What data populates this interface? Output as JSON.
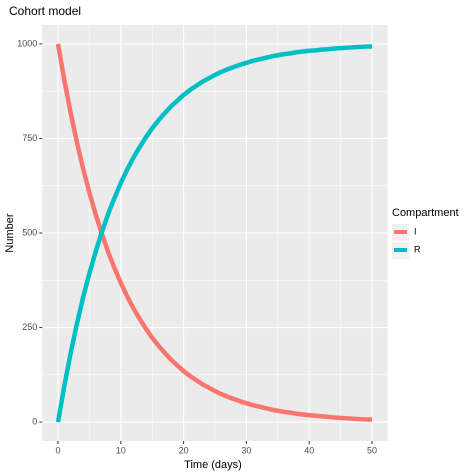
{
  "chart_data": {
    "type": "line",
    "title": "Cohort model",
    "x_label": "Time (days)",
    "y_label": "Number",
    "legend_title": "Compartment",
    "legend_position": "right",
    "grid": true,
    "x": [
      0,
      1,
      2,
      3,
      4,
      5,
      6,
      7,
      8,
      9,
      10,
      11,
      12,
      13,
      14,
      15,
      16,
      17,
      18,
      19,
      20,
      21,
      22,
      23,
      24,
      25,
      26,
      27,
      28,
      29,
      30,
      31,
      32,
      33,
      34,
      35,
      36,
      37,
      38,
      39,
      40,
      41,
      42,
      43,
      44,
      45,
      46,
      47,
      48,
      49,
      50
    ],
    "series": [
      {
        "name": "I",
        "color": "#F8766D",
        "values": [
          1000,
          905,
          819,
          741,
          670,
          607,
          549,
          497,
          449,
          407,
          368,
          333,
          301,
          273,
          247,
          223,
          202,
          183,
          165,
          150,
          135,
          122,
          111,
          100,
          91,
          82,
          74,
          67,
          61,
          55,
          50,
          45,
          41,
          37,
          33,
          30,
          27,
          25,
          22,
          20,
          18,
          17,
          15,
          14,
          12,
          11,
          10,
          9,
          8,
          7,
          7
        ]
      },
      {
        "name": "R",
        "color": "#00BFC4",
        "values": [
          0,
          95,
          181,
          259,
          330,
          393,
          451,
          503,
          551,
          593,
          632,
          667,
          699,
          727,
          753,
          777,
          798,
          817,
          835,
          850,
          865,
          878,
          889,
          900,
          909,
          918,
          926,
          933,
          939,
          945,
          950,
          955,
          959,
          963,
          967,
          970,
          973,
          975,
          978,
          980,
          982,
          983,
          985,
          986,
          988,
          989,
          990,
          991,
          992,
          993,
          993
        ]
      }
    ],
    "xlim": [
      -2.5,
      52.5
    ],
    "xticks": [
      0,
      10,
      20,
      30,
      40,
      50
    ],
    "ylim": [
      -50,
      1050
    ],
    "yticks": [
      0,
      250,
      500,
      750,
      1000
    ]
  }
}
